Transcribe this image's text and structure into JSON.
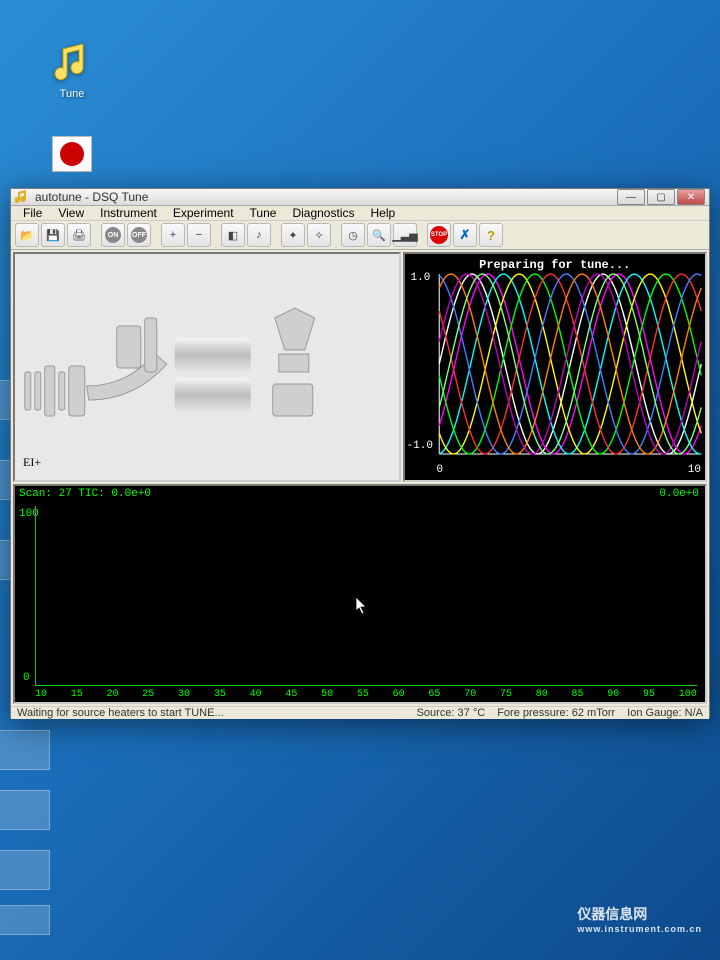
{
  "desktop": {
    "tune_icon_label": "Tune"
  },
  "watermark": {
    "brand": "仪器信息网",
    "sub": "www.instrument.com.cn"
  },
  "window": {
    "title": "autotune - DSQ  Tune",
    "menus": [
      "File",
      "View",
      "Instrument",
      "Experiment",
      "Tune",
      "Diagnostics",
      "Help"
    ],
    "toolbar_buttons": [
      {
        "name": "open",
        "glyph": "📂"
      },
      {
        "name": "save",
        "glyph": "💾"
      },
      {
        "name": "print",
        "glyph": "🖨"
      },
      {
        "name": "sep",
        "glyph": ""
      },
      {
        "name": "on",
        "glyph": "ON"
      },
      {
        "name": "off",
        "glyph": "OFF"
      },
      {
        "name": "sep",
        "glyph": ""
      },
      {
        "name": "plus",
        "glyph": "+"
      },
      {
        "name": "minus",
        "glyph": "−"
      },
      {
        "name": "sep",
        "glyph": ""
      },
      {
        "name": "scope",
        "glyph": "◧"
      },
      {
        "name": "note",
        "glyph": "♪"
      },
      {
        "name": "sep",
        "glyph": ""
      },
      {
        "name": "wand1",
        "glyph": "✦"
      },
      {
        "name": "wand2",
        "glyph": "✧"
      },
      {
        "name": "sep",
        "glyph": ""
      },
      {
        "name": "clock",
        "glyph": "◷"
      },
      {
        "name": "zoom",
        "glyph": "🔍"
      },
      {
        "name": "chart",
        "glyph": "▁▃▅"
      },
      {
        "name": "sep",
        "glyph": ""
      },
      {
        "name": "stop",
        "glyph": "STOP"
      },
      {
        "name": "cancel",
        "glyph": "✗"
      },
      {
        "name": "help",
        "glyph": "?"
      }
    ]
  },
  "schematic": {
    "label": "EI+",
    "bg": "#e8e8e8",
    "metal": "#c8c8c8",
    "metal_dark": "#9a9a9a"
  },
  "tuning_chart": {
    "title": "Preparing for tune...",
    "bg": "#000000",
    "axis_color": "#ffffff",
    "ylim": [
      -1.0,
      1.0
    ],
    "xlim": [
      0,
      10
    ],
    "y_ticks": [
      "1.0",
      "-1.0"
    ],
    "x_ticks": [
      "0",
      "10"
    ],
    "curves": [
      {
        "color": "#ffffff",
        "phase": 0.0
      },
      {
        "color": "#ff00ff",
        "phase": 0.6
      },
      {
        "color": "#00ffff",
        "phase": 1.2
      },
      {
        "color": "#ffff00",
        "phase": 1.8
      },
      {
        "color": "#00ff00",
        "phase": 2.4
      },
      {
        "color": "#ff3030",
        "phase": 3.0
      },
      {
        "color": "#4080ff",
        "phase": 3.6
      },
      {
        "color": "#ff8000",
        "phase": 4.2
      },
      {
        "color": "#c000c0",
        "phase": 4.8
      },
      {
        "color": "#80ff80",
        "phase": 5.4
      }
    ],
    "period": 5.0,
    "amplitude": 1.0
  },
  "spectrum": {
    "scan_label": "Scan: 27  TIC: 0.0e+0",
    "right_label": "0.0e+0",
    "bg": "#000000",
    "axis_color": "#00c800",
    "ylim": [
      0,
      100
    ],
    "xlim": [
      10,
      100
    ],
    "x_ticks": [
      "10",
      "15",
      "20",
      "25",
      "30",
      "35",
      "40",
      "45",
      "50",
      "55",
      "60",
      "65",
      "70",
      "75",
      "80",
      "85",
      "90",
      "95",
      "100"
    ],
    "y_ticks": {
      "top": "100",
      "bottom": "0"
    }
  },
  "status": {
    "left": "Waiting for source heaters to start TUNE...",
    "source": "Source:  37 °C",
    "fore": "Fore pressure:  62 mTorr",
    "ion": "Ion Gauge:  N/A"
  }
}
